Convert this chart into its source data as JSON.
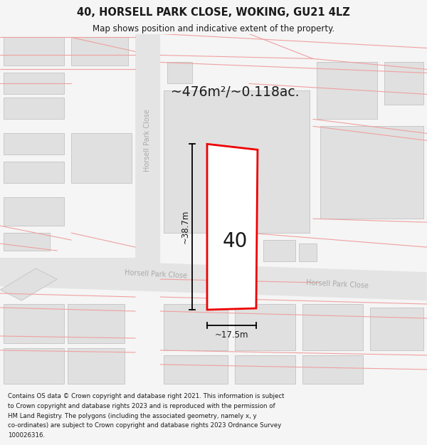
{
  "title": "40, HORSELL PARK CLOSE, WOKING, GU21 4LZ",
  "subtitle": "Map shows position and indicative extent of the property.",
  "area_text": "~476m²/~0.118ac.",
  "dim_width": "~17.5m",
  "dim_height": "~38.7m",
  "house_number": "40",
  "footer_lines": [
    "Contains OS data © Crown copyright and database right 2021. This information is subject",
    "to Crown copyright and database rights 2023 and is reproduced with the permission of",
    "HM Land Registry. The polygons (including the associated geometry, namely x, y",
    "co-ordinates) are subject to Crown copyright and database rights 2023 Ordnance Survey",
    "100026316."
  ],
  "bg_color": "#f5f5f5",
  "map_bg": "#ffffff",
  "building_color": "#e0e0e0",
  "building_edge": "#c8c8c8",
  "road_color": "#e4e4e4",
  "red_outline": "#ee0000",
  "pink_line": "#f0a0a0",
  "dark_text": "#1a1a1a",
  "road_text": "#aaaaaa",
  "title_size": 10.5,
  "subtitle_size": 8.5,
  "footer_size": 6.2
}
